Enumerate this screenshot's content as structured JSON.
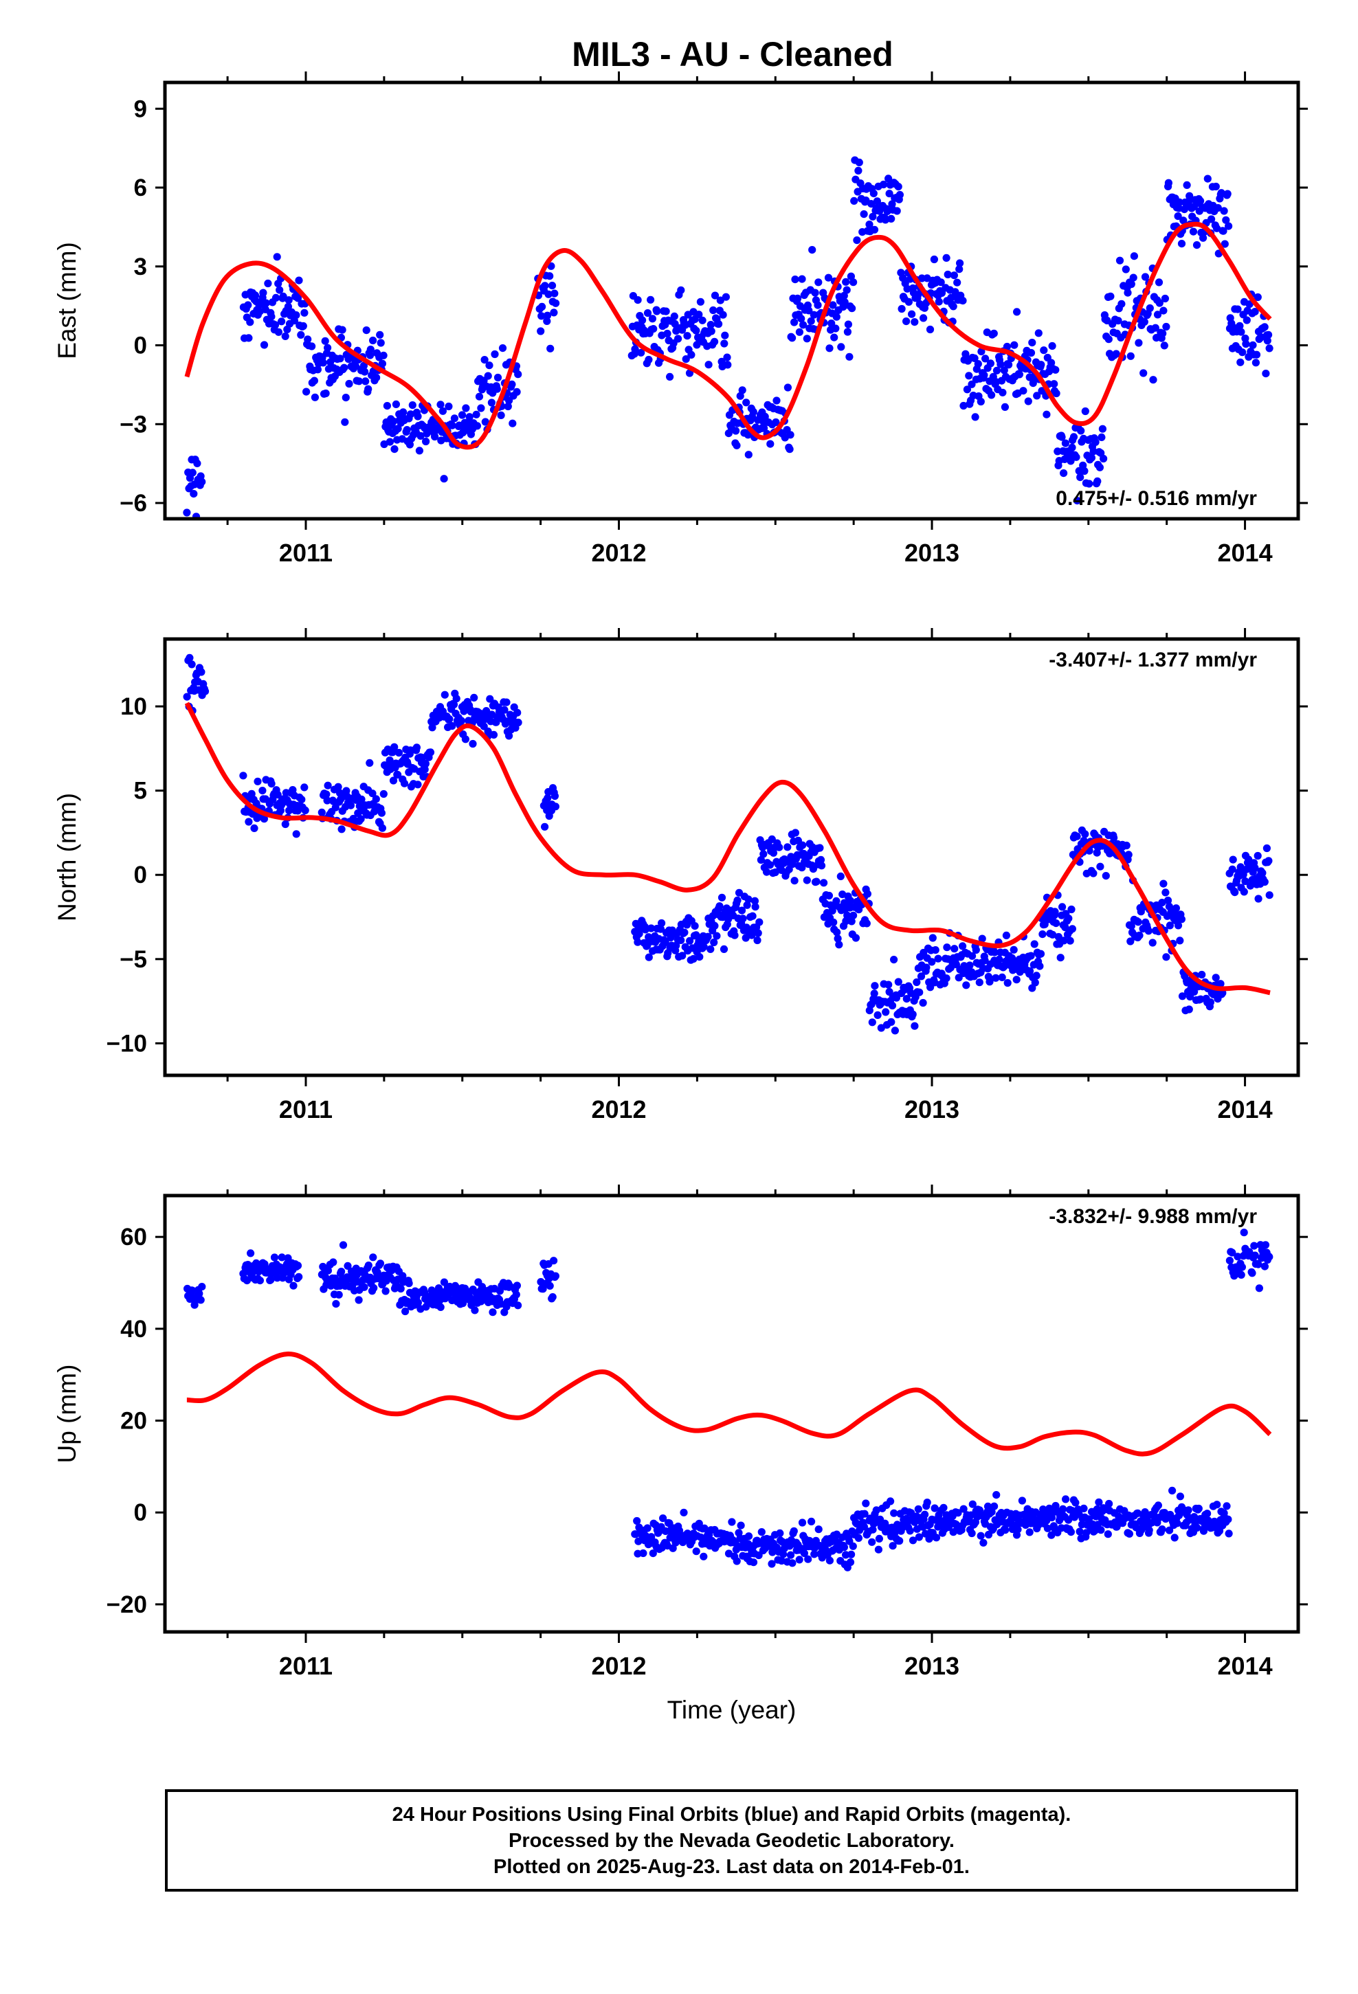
{
  "title": "MIL3  - AU - Cleaned",
  "chart_data": [
    {
      "type": "scatter",
      "name": "east",
      "ylabel": "East (mm)",
      "xlabel": "",
      "xlim": [
        2010.55,
        2014.17
      ],
      "ylim": [
        -6.6,
        10.0
      ],
      "yticks": [
        -6,
        -3,
        0,
        3,
        6,
        9
      ],
      "xticks": [
        2011,
        2012,
        2013,
        2014
      ],
      "annotation": "0.475+/- 0.516 mm/yr",
      "points_color": "#0000ff",
      "model_color": "#ff0000",
      "segments": [
        {
          "x0": 2010.62,
          "x1": 2010.67,
          "mean": -5.0,
          "spread": 0.9
        },
        {
          "x0": 2010.8,
          "x1": 2011.0,
          "mean": 1.4,
          "spread": 1.2
        },
        {
          "x0": 2011.0,
          "x1": 2011.25,
          "mean": -0.7,
          "spread": 1.0
        },
        {
          "x0": 2011.25,
          "x1": 2011.55,
          "mean": -3.0,
          "spread": 0.9
        },
        {
          "x0": 2011.55,
          "x1": 2011.68,
          "mean": -1.8,
          "spread": 1.1
        },
        {
          "x0": 2011.74,
          "x1": 2011.8,
          "mean": 1.8,
          "spread": 1.3
        },
        {
          "x0": 2012.04,
          "x1": 2012.35,
          "mean": 0.6,
          "spread": 1.3
        },
        {
          "x0": 2012.35,
          "x1": 2012.55,
          "mean": -3.0,
          "spread": 1.0
        },
        {
          "x0": 2012.55,
          "x1": 2012.75,
          "mean": 1.5,
          "spread": 1.4
        },
        {
          "x0": 2012.75,
          "x1": 2012.9,
          "mean": 5.5,
          "spread": 1.3
        },
        {
          "x0": 2012.9,
          "x1": 2013.1,
          "mean": 2.0,
          "spread": 1.2
        },
        {
          "x0": 2013.1,
          "x1": 2013.4,
          "mean": -1.0,
          "spread": 1.3
        },
        {
          "x0": 2013.4,
          "x1": 2013.55,
          "mean": -4.0,
          "spread": 0.9
        },
        {
          "x0": 2013.55,
          "x1": 2013.75,
          "mean": 1.0,
          "spread": 1.4
        },
        {
          "x0": 2013.75,
          "x1": 2013.95,
          "mean": 5.0,
          "spread": 1.3
        },
        {
          "x0": 2013.95,
          "x1": 2014.08,
          "mean": 0.5,
          "spread": 1.3
        }
      ],
      "model": [
        [
          2010.62,
          -1.2
        ],
        [
          2010.67,
          0.8
        ],
        [
          2010.74,
          2.5
        ],
        [
          2010.82,
          3.1
        ],
        [
          2010.9,
          2.9
        ],
        [
          2011.0,
          1.8
        ],
        [
          2011.1,
          0.2
        ],
        [
          2011.22,
          -0.8
        ],
        [
          2011.33,
          -1.6
        ],
        [
          2011.43,
          -2.9
        ],
        [
          2011.49,
          -3.8
        ],
        [
          2011.56,
          -3.6
        ],
        [
          2011.63,
          -1.8
        ],
        [
          2011.7,
          0.8
        ],
        [
          2011.76,
          2.9
        ],
        [
          2011.82,
          3.6
        ],
        [
          2011.88,
          3.2
        ],
        [
          2011.95,
          2.0
        ],
        [
          2012.05,
          0.2
        ],
        [
          2012.15,
          -0.5
        ],
        [
          2012.25,
          -1.0
        ],
        [
          2012.35,
          -2.0
        ],
        [
          2012.42,
          -3.2
        ],
        [
          2012.47,
          -3.5
        ],
        [
          2012.53,
          -2.8
        ],
        [
          2012.6,
          -0.8
        ],
        [
          2012.68,
          2.0
        ],
        [
          2012.76,
          3.6
        ],
        [
          2012.82,
          4.1
        ],
        [
          2012.88,
          3.8
        ],
        [
          2012.96,
          2.3
        ],
        [
          2013.05,
          0.9
        ],
        [
          2013.15,
          0.0
        ],
        [
          2013.25,
          -0.3
        ],
        [
          2013.33,
          -1.0
        ],
        [
          2013.4,
          -2.3
        ],
        [
          2013.46,
          -2.95
        ],
        [
          2013.52,
          -2.7
        ],
        [
          2013.58,
          -1.2
        ],
        [
          2013.65,
          1.0
        ],
        [
          2013.72,
          3.0
        ],
        [
          2013.78,
          4.3
        ],
        [
          2013.83,
          4.6
        ],
        [
          2013.88,
          4.4
        ],
        [
          2013.95,
          3.2
        ],
        [
          2014.02,
          1.8
        ],
        [
          2014.08,
          1.0
        ]
      ]
    },
    {
      "type": "scatter",
      "name": "north",
      "ylabel": "North (mm)",
      "xlabel": "",
      "xlim": [
        2010.55,
        2014.17
      ],
      "ylim": [
        -11.9,
        14.0
      ],
      "yticks": [
        -10,
        -5,
        0,
        5,
        10
      ],
      "xticks": [
        2011,
        2012,
        2013,
        2014
      ],
      "annotation": "-3.407+/- 1.377 mm/yr",
      "points_color": "#0000ff",
      "model_color": "#ff0000",
      "segments": [
        {
          "x0": 2010.62,
          "x1": 2010.68,
          "mean": 11.0,
          "spread": 1.4
        },
        {
          "x0": 2010.8,
          "x1": 2011.0,
          "mean": 4.3,
          "spread": 1.3
        },
        {
          "x0": 2011.05,
          "x1": 2011.25,
          "mean": 4.0,
          "spread": 1.4
        },
        {
          "x0": 2011.25,
          "x1": 2011.4,
          "mean": 6.5,
          "spread": 1.3
        },
        {
          "x0": 2011.4,
          "x1": 2011.68,
          "mean": 9.5,
          "spread": 1.0
        },
        {
          "x0": 2011.76,
          "x1": 2011.8,
          "mean": 4.5,
          "spread": 1.5
        },
        {
          "x0": 2012.05,
          "x1": 2012.3,
          "mean": -3.8,
          "spread": 1.2
        },
        {
          "x0": 2012.3,
          "x1": 2012.45,
          "mean": -2.5,
          "spread": 1.3
        },
        {
          "x0": 2012.45,
          "x1": 2012.65,
          "mean": 1.0,
          "spread": 1.2
        },
        {
          "x0": 2012.65,
          "x1": 2012.8,
          "mean": -2.0,
          "spread": 1.4
        },
        {
          "x0": 2012.8,
          "x1": 2012.95,
          "mean": -7.5,
          "spread": 1.4
        },
        {
          "x0": 2012.95,
          "x1": 2013.35,
          "mean": -5.3,
          "spread": 1.3
        },
        {
          "x0": 2013.35,
          "x1": 2013.45,
          "mean": -3.0,
          "spread": 1.3
        },
        {
          "x0": 2013.45,
          "x1": 2013.63,
          "mean": 1.5,
          "spread": 1.1
        },
        {
          "x0": 2013.63,
          "x1": 2013.8,
          "mean": -2.5,
          "spread": 1.5
        },
        {
          "x0": 2013.8,
          "x1": 2013.93,
          "mean": -6.8,
          "spread": 1.0
        },
        {
          "x0": 2013.95,
          "x1": 2014.08,
          "mean": 0.0,
          "spread": 1.2
        }
      ],
      "model": [
        [
          2010.62,
          10.2
        ],
        [
          2010.68,
          8.0
        ],
        [
          2010.75,
          5.6
        ],
        [
          2010.83,
          4.0
        ],
        [
          2010.92,
          3.4
        ],
        [
          2011.02,
          3.4
        ],
        [
          2011.1,
          3.2
        ],
        [
          2011.2,
          2.6
        ],
        [
          2011.27,
          2.4
        ],
        [
          2011.33,
          3.6
        ],
        [
          2011.42,
          6.6
        ],
        [
          2011.48,
          8.4
        ],
        [
          2011.53,
          8.8
        ],
        [
          2011.6,
          7.5
        ],
        [
          2011.67,
          4.8
        ],
        [
          2011.75,
          2.2
        ],
        [
          2011.85,
          0.3
        ],
        [
          2011.95,
          0.0
        ],
        [
          2012.05,
          0.0
        ],
        [
          2012.13,
          -0.4
        ],
        [
          2012.22,
          -0.9
        ],
        [
          2012.3,
          -0.2
        ],
        [
          2012.38,
          2.4
        ],
        [
          2012.46,
          4.6
        ],
        [
          2012.52,
          5.5
        ],
        [
          2012.58,
          4.8
        ],
        [
          2012.66,
          2.5
        ],
        [
          2012.75,
          -0.6
        ],
        [
          2012.84,
          -2.8
        ],
        [
          2012.93,
          -3.3
        ],
        [
          2013.03,
          -3.3
        ],
        [
          2013.12,
          -3.9
        ],
        [
          2013.22,
          -4.2
        ],
        [
          2013.3,
          -3.4
        ],
        [
          2013.38,
          -1.4
        ],
        [
          2013.46,
          0.9
        ],
        [
          2013.52,
          2.0
        ],
        [
          2013.58,
          1.6
        ],
        [
          2013.66,
          -0.8
        ],
        [
          2013.74,
          -3.5
        ],
        [
          2013.82,
          -5.8
        ],
        [
          2013.9,
          -6.7
        ],
        [
          2014.0,
          -6.7
        ],
        [
          2014.08,
          -7.0
        ]
      ]
    },
    {
      "type": "scatter",
      "name": "up",
      "ylabel": "Up (mm)",
      "xlabel": "Time (year)",
      "xlim": [
        2010.55,
        2014.17
      ],
      "ylim": [
        -26.0,
        69.0
      ],
      "yticks": [
        -20,
        0,
        20,
        40,
        60
      ],
      "xticks": [
        2011,
        2012,
        2013,
        2014
      ],
      "annotation": "-3.832+/- 9.988 mm/yr",
      "points_color": "#0000ff",
      "model_color": "#ff0000",
      "segments": [
        {
          "x0": 2010.62,
          "x1": 2010.67,
          "mean": 47.0,
          "spread": 2.5
        },
        {
          "x0": 2010.8,
          "x1": 2010.98,
          "mean": 53.0,
          "spread": 3.0
        },
        {
          "x0": 2011.05,
          "x1": 2011.3,
          "mean": 51.0,
          "spread": 3.5
        },
        {
          "x0": 2011.3,
          "x1": 2011.68,
          "mean": 47.0,
          "spread": 3.0
        },
        {
          "x0": 2011.75,
          "x1": 2011.8,
          "mean": 51.0,
          "spread": 4.0
        },
        {
          "x0": 2012.05,
          "x1": 2012.4,
          "mean": -5.5,
          "spread": 3.5
        },
        {
          "x0": 2012.4,
          "x1": 2012.75,
          "mean": -7.5,
          "spread": 3.5
        },
        {
          "x0": 2012.75,
          "x1": 2013.1,
          "mean": -2.5,
          "spread": 3.5
        },
        {
          "x0": 2013.1,
          "x1": 2013.38,
          "mean": -1.5,
          "spread": 3.5
        },
        {
          "x0": 2013.38,
          "x1": 2013.95,
          "mean": -1.5,
          "spread": 3.5
        },
        {
          "x0": 2013.95,
          "x1": 2014.08,
          "mean": 55.0,
          "spread": 3.5
        }
      ],
      "model": [
        [
          2010.62,
          24.5
        ],
        [
          2010.68,
          24.5
        ],
        [
          2010.75,
          27.0
        ],
        [
          2010.85,
          32.0
        ],
        [
          2010.94,
          34.5
        ],
        [
          2011.02,
          32.5
        ],
        [
          2011.12,
          26.5
        ],
        [
          2011.22,
          22.5
        ],
        [
          2011.3,
          21.5
        ],
        [
          2011.38,
          23.5
        ],
        [
          2011.46,
          25.0
        ],
        [
          2011.55,
          23.5
        ],
        [
          2011.65,
          20.8
        ],
        [
          2011.72,
          21.5
        ],
        [
          2011.82,
          26.5
        ],
        [
          2011.93,
          30.5
        ],
        [
          2012.0,
          29.0
        ],
        [
          2012.1,
          22.5
        ],
        [
          2012.2,
          18.5
        ],
        [
          2012.28,
          18.0
        ],
        [
          2012.38,
          20.5
        ],
        [
          2012.45,
          21.2
        ],
        [
          2012.52,
          20.0
        ],
        [
          2012.62,
          17.2
        ],
        [
          2012.7,
          17.0
        ],
        [
          2012.8,
          21.5
        ],
        [
          2012.93,
          26.5
        ],
        [
          2013.0,
          25.0
        ],
        [
          2013.1,
          19.0
        ],
        [
          2013.2,
          14.5
        ],
        [
          2013.28,
          14.3
        ],
        [
          2013.36,
          16.5
        ],
        [
          2013.45,
          17.5
        ],
        [
          2013.52,
          16.8
        ],
        [
          2013.62,
          13.5
        ],
        [
          2013.7,
          13.0
        ],
        [
          2013.8,
          17.0
        ],
        [
          2013.93,
          22.8
        ],
        [
          2014.0,
          22.0
        ],
        [
          2014.08,
          17.0
        ]
      ]
    }
  ],
  "footer": {
    "line1": "24 Hour Positions Using Final Orbits (blue) and Rapid Orbits (magenta).",
    "line2": "Processed by the Nevada Geodetic Laboratory.",
    "line3": "Plotted on 2025-Aug-23. Last data on 2014-Feb-01."
  }
}
